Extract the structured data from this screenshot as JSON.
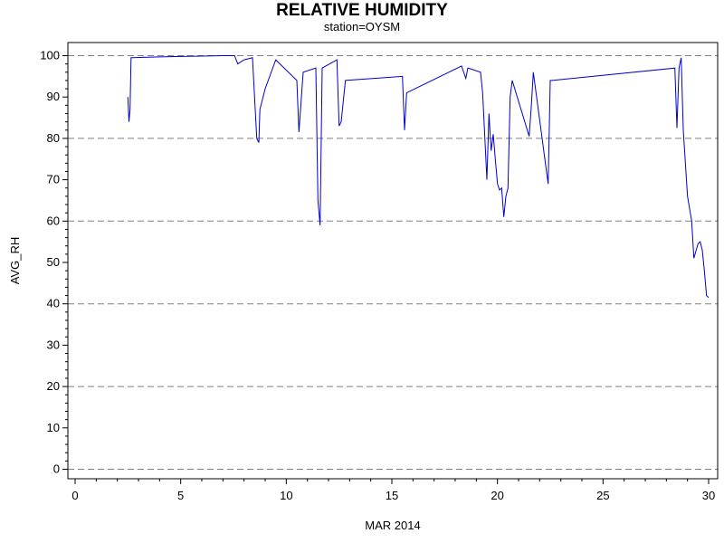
{
  "chart_data": {
    "type": "line",
    "title": "RELATIVE HUMIDITY",
    "subtitle": "station=OYSM",
    "xlabel": "MAR 2014",
    "ylabel": "AVG_RH",
    "xlim": [
      0,
      30
    ],
    "ylim": [
      0,
      100
    ],
    "x_ticks": [
      0,
      5,
      10,
      15,
      20,
      25,
      30
    ],
    "y_ticks": [
      0,
      10,
      20,
      30,
      40,
      50,
      60,
      70,
      80,
      90,
      100
    ],
    "grid_y": [
      0,
      20,
      40,
      60,
      80,
      100
    ],
    "grid": "dashed horizontal",
    "line_color": "#0000cc",
    "series": [
      {
        "x": [
          2.5,
          2.55,
          2.6,
          2.65,
          2.7,
          4.0,
          5.0,
          6.0,
          7.0,
          7.55,
          7.7,
          8.0,
          8.4,
          8.6,
          8.7,
          8.75,
          9.0,
          9.5,
          10.5,
          10.6,
          10.8,
          11.4,
          11.5,
          11.6,
          11.7,
          12.4,
          12.5,
          12.6,
          12.8,
          15.5,
          15.6,
          15.7,
          18.3,
          18.5,
          18.6,
          19.2,
          19.3,
          19.5,
          19.6,
          19.7,
          19.8,
          19.9,
          20.0,
          20.1,
          20.2,
          20.3,
          20.4,
          20.5,
          20.6,
          20.7,
          21.5,
          21.6,
          21.7,
          22.4,
          22.5,
          22.6,
          28.4,
          28.5,
          28.6,
          28.7,
          28.8,
          29.0,
          29.2,
          29.3,
          29.5,
          29.6,
          29.7,
          29.8,
          29.9,
          30.0
        ],
        "y": [
          90,
          84,
          87,
          99.5,
          99.5,
          99.7,
          99.8,
          99.9,
          100,
          100,
          98,
          99,
          99.5,
          80,
          79,
          87,
          92,
          99,
          94,
          81.5,
          96,
          97,
          65,
          59,
          97,
          99,
          83,
          84,
          94,
          95,
          82,
          91,
          97.5,
          94.5,
          97,
          96,
          91,
          70,
          86,
          77,
          81,
          75,
          69,
          67.5,
          68,
          61,
          66,
          68,
          90,
          94,
          80.5,
          87.5,
          96,
          69,
          94,
          94,
          97,
          82.5,
          97,
          99.5,
          82,
          66,
          60,
          51,
          54.5,
          55,
          53,
          48,
          42,
          41.5
        ]
      }
    ]
  }
}
